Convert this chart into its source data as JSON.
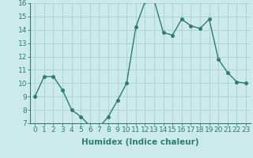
{
  "x": [
    0,
    1,
    2,
    3,
    4,
    5,
    6,
    7,
    8,
    9,
    10,
    11,
    12,
    13,
    14,
    15,
    16,
    17,
    18,
    19,
    20,
    21,
    22,
    23
  ],
  "y": [
    9.0,
    10.5,
    10.5,
    9.5,
    8.0,
    7.5,
    6.8,
    6.7,
    7.5,
    8.7,
    10.0,
    14.2,
    16.1,
    16.2,
    13.8,
    13.6,
    14.8,
    14.3,
    14.1,
    14.8,
    11.8,
    10.8,
    10.1,
    10.0
  ],
  "line_color": "#2e7d6e",
  "bg_color": "#cceaea",
  "grid_color": "#aacfcf",
  "xlabel": "Humidex (Indice chaleur)",
  "ylim": [
    7,
    16
  ],
  "xlim_min": -0.5,
  "xlim_max": 23.5,
  "yticks": [
    7,
    8,
    9,
    10,
    11,
    12,
    13,
    14,
    15,
    16
  ],
  "xticks": [
    0,
    1,
    2,
    3,
    4,
    5,
    6,
    7,
    8,
    9,
    10,
    11,
    12,
    13,
    14,
    15,
    16,
    17,
    18,
    19,
    20,
    21,
    22,
    23
  ],
  "xtick_labels": [
    "0",
    "1",
    "2",
    "3",
    "4",
    "5",
    "6",
    "7",
    "8",
    "9",
    "10",
    "11",
    "12",
    "13",
    "14",
    "15",
    "16",
    "17",
    "18",
    "19",
    "20",
    "21",
    "22",
    "23"
  ],
  "marker": "o",
  "markersize": 2.5,
  "linewidth": 1.0,
  "xlabel_fontsize": 7.5,
  "tick_fontsize": 6.5,
  "fig_width": 3.2,
  "fig_height": 2.0,
  "fig_dpi": 100
}
